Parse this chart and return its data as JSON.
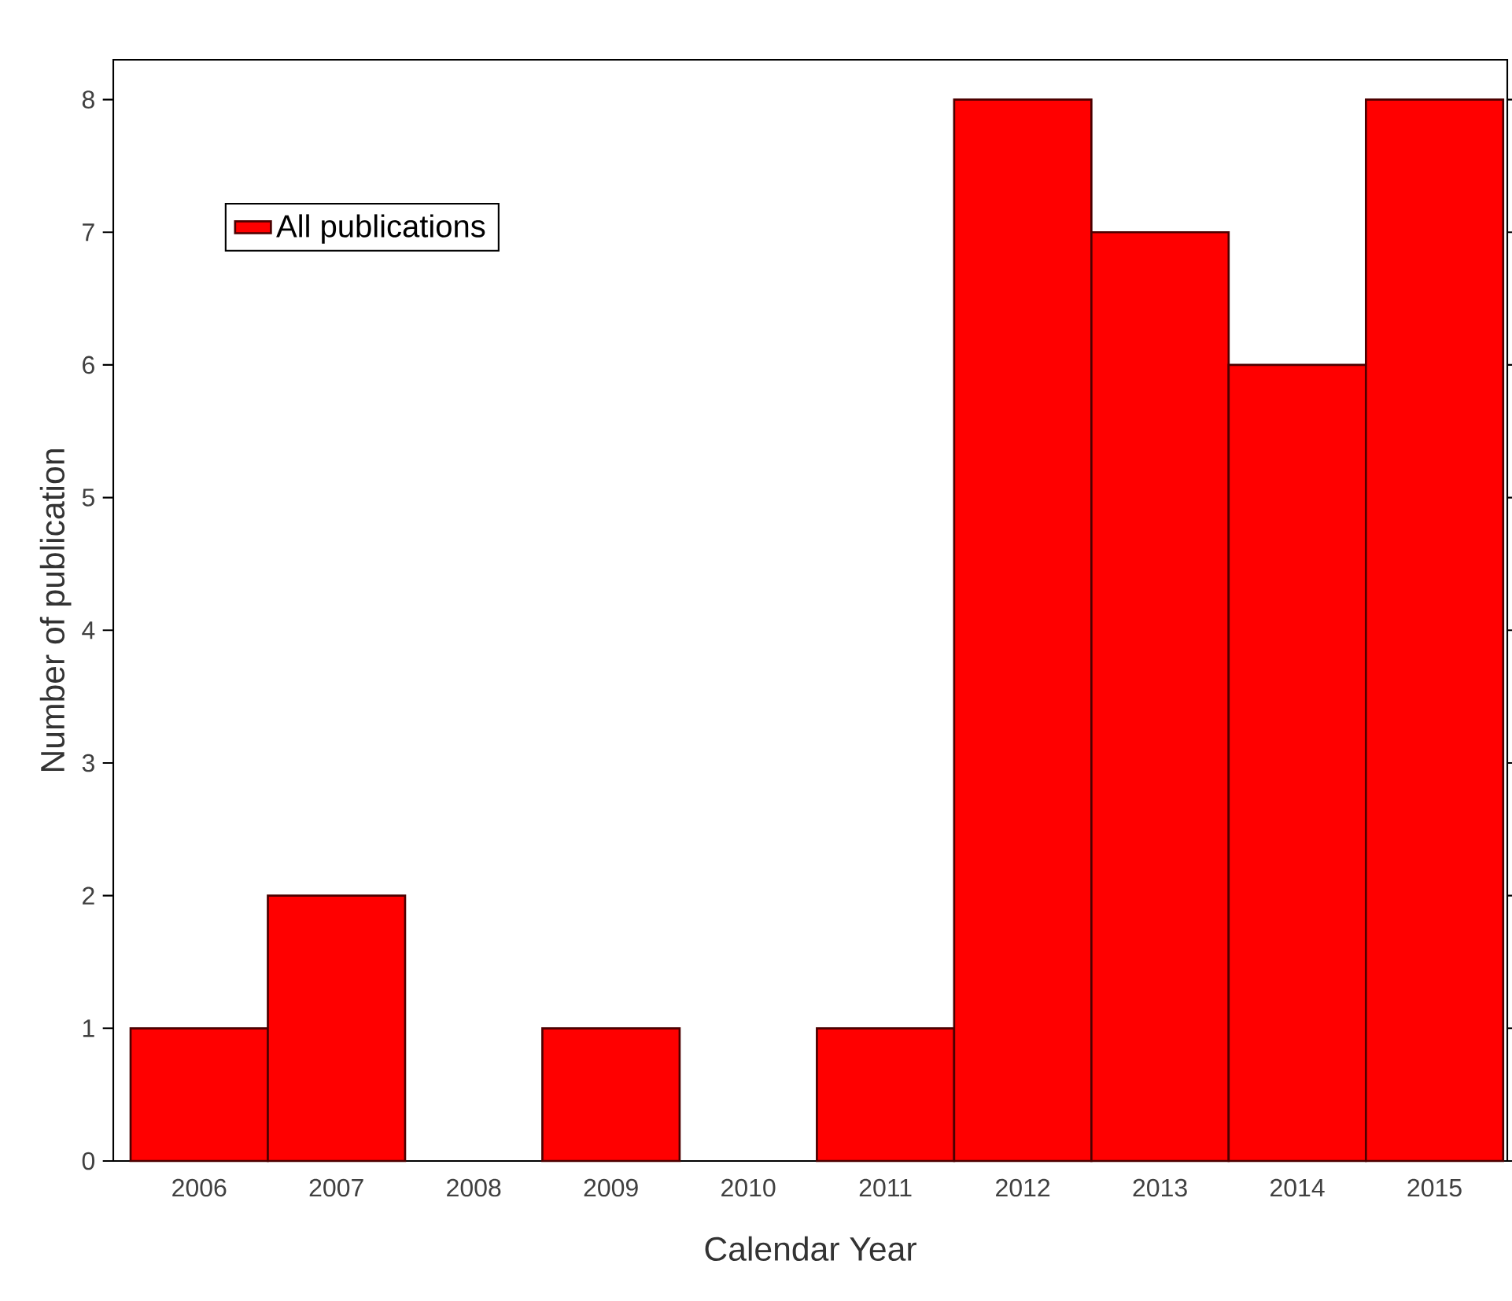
{
  "chart_data": {
    "type": "bar",
    "xlabel": "Calendar Year",
    "ylabel": "Number of publication",
    "categories": [
      "2006",
      "2007",
      "2008",
      "2009",
      "2010",
      "2011",
      "2012",
      "2013",
      "2014",
      "2015"
    ],
    "series": [
      {
        "name": "All publications",
        "color": "#ff0000",
        "values": [
          1,
          2,
          0,
          1,
          0,
          1,
          8,
          7,
          6,
          8
        ]
      }
    ],
    "ylim": [
      0,
      8.3
    ],
    "yticks": [
      0,
      1,
      2,
      3,
      4,
      5,
      6,
      7,
      8
    ],
    "legend": "top left"
  }
}
